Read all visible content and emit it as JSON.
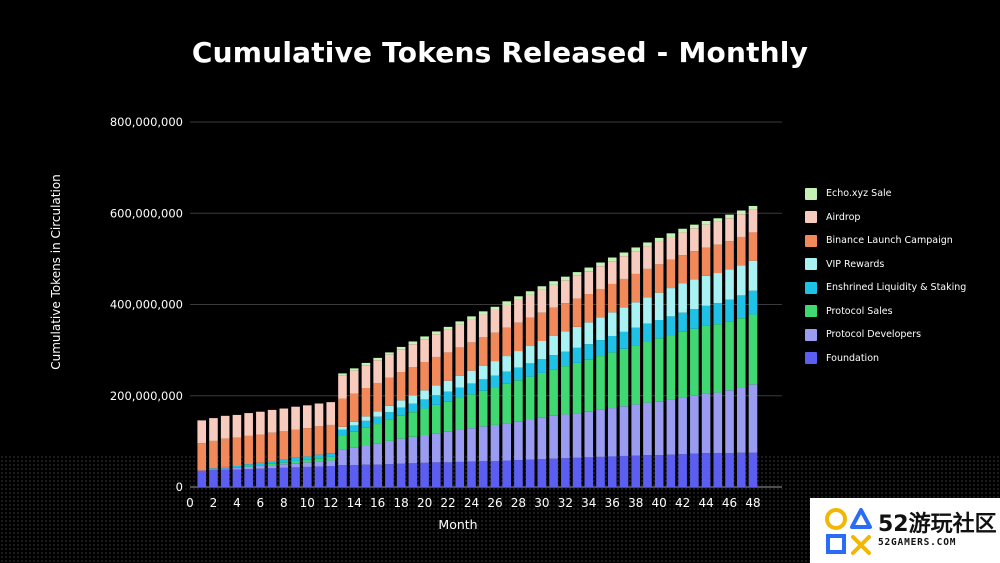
{
  "title": "Cumulative Tokens Released - Monthly",
  "colors": {
    "background": "#000000",
    "grid": "#3a3a3a",
    "text": "#ffffff"
  },
  "chart_data": {
    "type": "bar",
    "stacked": true,
    "xlabel": "Month",
    "ylabel": "Cumulative Tokens in Circulation",
    "ylim": [
      0,
      800000000
    ],
    "yticks": [
      "0",
      "200,000,000",
      "400,000,000",
      "600,000,000",
      "800,000,000"
    ],
    "ytick_values": [
      0,
      200000000,
      400000000,
      600000000,
      800000000
    ],
    "xticks": [
      "0",
      "2",
      "4",
      "6",
      "8",
      "10",
      "12",
      "14",
      "16",
      "18",
      "20",
      "22",
      "24",
      "26",
      "28",
      "30",
      "32",
      "34",
      "36",
      "38",
      "40",
      "42",
      "44",
      "46",
      "48"
    ],
    "legend_position": "right",
    "grid": true,
    "categories": [
      1,
      2,
      3,
      4,
      5,
      6,
      7,
      8,
      9,
      10,
      11,
      12,
      13,
      14,
      15,
      16,
      17,
      18,
      19,
      20,
      21,
      22,
      23,
      24,
      25,
      26,
      27,
      28,
      29,
      30,
      31,
      32,
      33,
      34,
      35,
      36,
      37,
      38,
      39,
      40,
      41,
      42,
      43,
      44,
      45,
      46,
      47,
      48
    ],
    "series": [
      {
        "name": "Foundation",
        "color": "#5b5ef0",
        "values": [
          36000000,
          37000000,
          38000000,
          38000000,
          39000000,
          40000000,
          41000000,
          42000000,
          43000000,
          44000000,
          45000000,
          46000000,
          48000000,
          48000000,
          49000000,
          49000000,
          50000000,
          51000000,
          52000000,
          53000000,
          54000000,
          54000000,
          55000000,
          56000000,
          57000000,
          57000000,
          58000000,
          59000000,
          60000000,
          61000000,
          62000000,
          63000000,
          64000000,
          65000000,
          66000000,
          67000000,
          68000000,
          69000000,
          70000000,
          70000000,
          71000000,
          72000000,
          73000000,
          74000000,
          74000000,
          74000000,
          75000000,
          75000000
        ]
      },
      {
        "name": "Protocol Developers",
        "color": "#9a9cf2",
        "values": [
          0,
          2000000,
          3000000,
          4000000,
          5000000,
          6000000,
          7000000,
          8000000,
          9000000,
          10000000,
          11000000,
          12000000,
          35000000,
          39000000,
          43000000,
          47000000,
          51000000,
          55000000,
          58000000,
          61000000,
          64000000,
          67000000,
          70000000,
          73000000,
          76000000,
          79000000,
          82000000,
          85000000,
          88000000,
          91000000,
          94000000,
          96000000,
          98000000,
          100000000,
          103000000,
          106000000,
          109000000,
          112000000,
          115000000,
          118000000,
          121000000,
          124000000,
          127000000,
          130000000,
          133000000,
          138000000,
          143000000,
          150000000
        ]
      },
      {
        "name": "Protocol Sales",
        "color": "#3fd873",
        "values": [
          0,
          0,
          0,
          0,
          1000000,
          2000000,
          3000000,
          4000000,
          5000000,
          6000000,
          7000000,
          8000000,
          30000000,
          34000000,
          38000000,
          42000000,
          46000000,
          50000000,
          54000000,
          58000000,
          62000000,
          66000000,
          70000000,
          74000000,
          78000000,
          82000000,
          86000000,
          90000000,
          94000000,
          98000000,
          102000000,
          106000000,
          110000000,
          114000000,
          118000000,
          122000000,
          126000000,
          130000000,
          134000000,
          138000000,
          141000000,
          144000000,
          147000000,
          149000000,
          150000000,
          151000000,
          152000000,
          153000000
        ]
      },
      {
        "name": "Enshrined Liquidity & Staking",
        "color": "#1ec2e6",
        "values": [
          0,
          2000000,
          3000000,
          4000000,
          5000000,
          5000000,
          6000000,
          6000000,
          7000000,
          7000000,
          8000000,
          8000000,
          13000000,
          14000000,
          15000000,
          16000000,
          17000000,
          18000000,
          19000000,
          20000000,
          21000000,
          22000000,
          23000000,
          24000000,
          25000000,
          26000000,
          27000000,
          28000000,
          29000000,
          30000000,
          31000000,
          32000000,
          33000000,
          34000000,
          35000000,
          36000000,
          37000000,
          38000000,
          39000000,
          40000000,
          41000000,
          42000000,
          43000000,
          44000000,
          46000000,
          48000000,
          50000000,
          52000000
        ]
      },
      {
        "name": "VIP Rewards",
        "color": "#a8f2f4",
        "values": [
          0,
          0,
          0,
          0,
          0,
          0,
          0,
          0,
          0,
          0,
          0,
          0,
          6000000,
          8000000,
          10000000,
          12000000,
          14000000,
          16000000,
          18000000,
          20000000,
          22000000,
          24000000,
          26000000,
          28000000,
          30000000,
          32000000,
          34000000,
          36000000,
          38000000,
          40000000,
          42000000,
          44000000,
          46000000,
          48000000,
          50000000,
          52000000,
          54000000,
          56000000,
          58000000,
          60000000,
          62000000,
          64000000,
          65000000,
          66000000,
          66000000,
          66000000,
          66000000,
          66000000
        ]
      },
      {
        "name": "Binance Launch Campaign",
        "color": "#f2895a",
        "values": [
          60000000,
          60000000,
          62000000,
          62000000,
          62000000,
          62000000,
          62000000,
          62000000,
          62000000,
          62000000,
          62000000,
          62000000,
          62000000,
          62000000,
          62000000,
          62000000,
          62000000,
          62000000,
          62000000,
          62000000,
          62000000,
          62000000,
          62000000,
          62000000,
          62000000,
          62000000,
          62000000,
          62000000,
          62000000,
          62000000,
          62000000,
          62000000,
          62000000,
          62000000,
          62000000,
          62000000,
          62000000,
          62000000,
          62000000,
          62000000,
          62000000,
          62000000,
          62000000,
          62000000,
          62000000,
          62000000,
          62000000,
          62000000
        ]
      },
      {
        "name": "Airdrop",
        "color": "#f8cbbf",
        "values": [
          50000000,
          50000000,
          50000000,
          50000000,
          50000000,
          50000000,
          50000000,
          50000000,
          50000000,
          50000000,
          50000000,
          50000000,
          50000000,
          50000000,
          50000000,
          50000000,
          50000000,
          50000000,
          50000000,
          50000000,
          50000000,
          50000000,
          50000000,
          50000000,
          50000000,
          50000000,
          50000000,
          50000000,
          50000000,
          50000000,
          50000000,
          50000000,
          50000000,
          50000000,
          50000000,
          50000000,
          50000000,
          50000000,
          50000000,
          50000000,
          50000000,
          50000000,
          50000000,
          50000000,
          50000000,
          50000000,
          50000000,
          50000000
        ]
      },
      {
        "name": "Echo.xyz Sale",
        "color": "#c3f2b4",
        "values": [
          0,
          0,
          0,
          0,
          0,
          0,
          0,
          0,
          0,
          0,
          0,
          0,
          5000000,
          5000000,
          5000000,
          5000000,
          5000000,
          5000000,
          6000000,
          6000000,
          6000000,
          6000000,
          7000000,
          7000000,
          7000000,
          7000000,
          8000000,
          8000000,
          8000000,
          8000000,
          8000000,
          8000000,
          8000000,
          8000000,
          8000000,
          8000000,
          8000000,
          8000000,
          8000000,
          8000000,
          8000000,
          8000000,
          8000000,
          8000000,
          8000000,
          8000000,
          8000000,
          8000000
        ]
      }
    ]
  },
  "legend_order": [
    "Echo.xyz Sale",
    "Airdrop",
    "Binance Launch Campaign",
    "VIP Rewards",
    "Enshrined Liquidity & Staking",
    "Protocol Sales",
    "Protocol Developers",
    "Foundation"
  ],
  "watermark": {
    "main": "52游玩社区",
    "sub": "52GAMERS.COM",
    "icon": "gamepad-symbols-icon"
  }
}
